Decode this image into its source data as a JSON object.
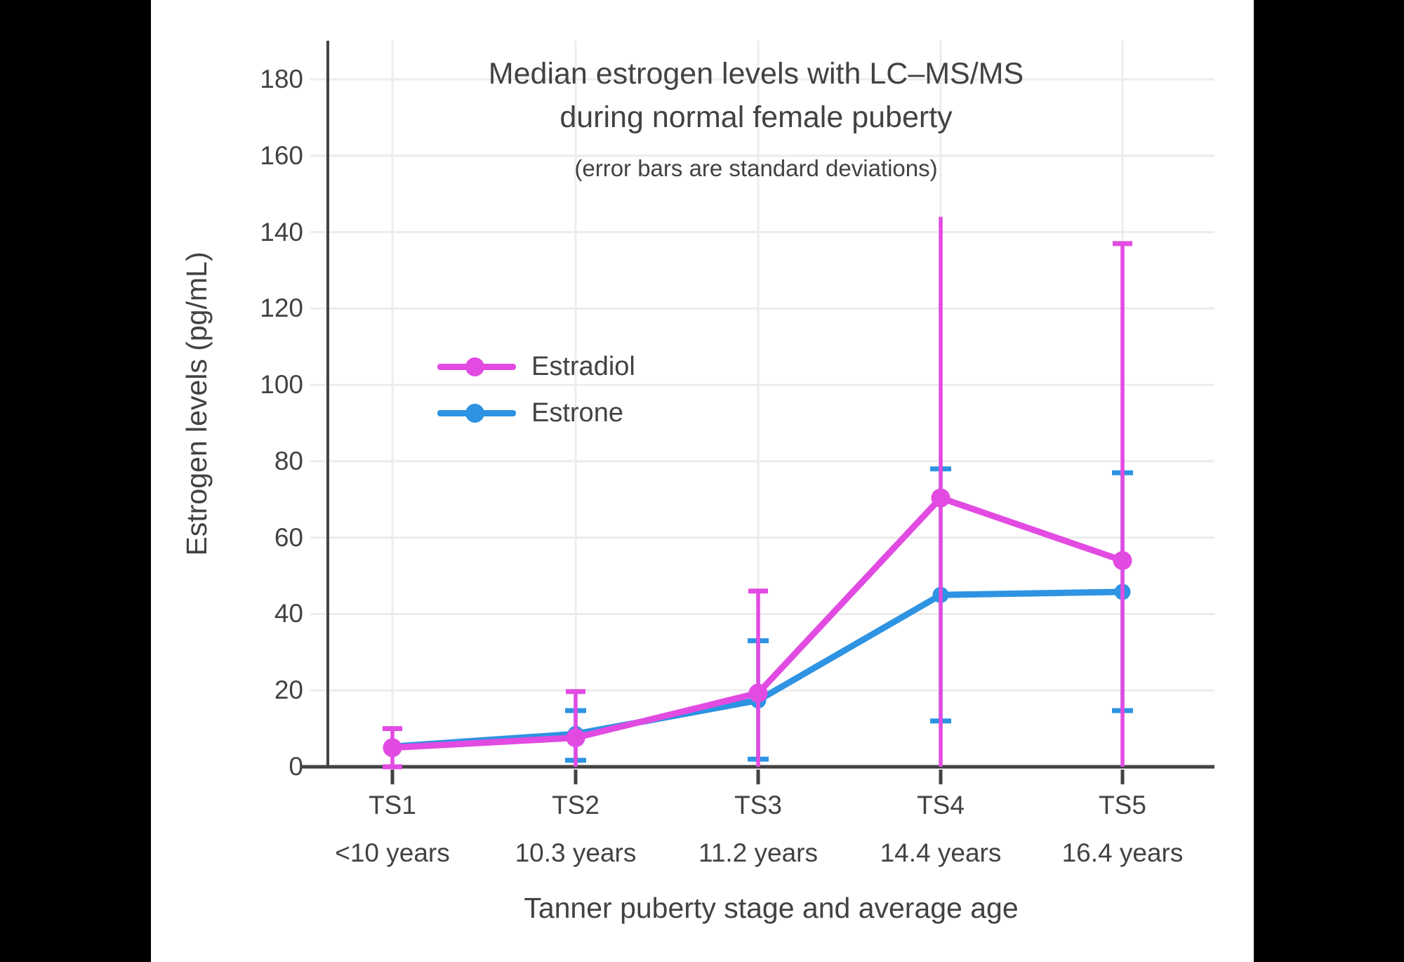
{
  "title": {
    "line1": "Median estrogen levels with LC–MS/MS",
    "line2": "during normal female puberty",
    "subtitle": "(error bars are standard deviations)"
  },
  "y_axis": {
    "title": "Estrogen levels (pg/mL)"
  },
  "x_axis": {
    "title": "Tanner puberty stage and average age"
  },
  "legend": [
    {
      "label": "Estradiol",
      "color": "#E24BE2"
    },
    {
      "label": "Estrone",
      "color": "#2D93E2"
    }
  ],
  "chart_data": {
    "type": "line",
    "title": "Median estrogen levels with LC–MS/MS during normal female puberty",
    "subtitle": "(error bars are standard deviations)",
    "xlabel": "Tanner puberty stage and average age",
    "ylabel": "Estrogen levels (pg/mL)",
    "categories": [
      "TS1",
      "TS2",
      "TS3",
      "TS4",
      "TS5"
    ],
    "category_ages": [
      "<10 years",
      "10.3 years",
      "11.2 years",
      "14.4 years",
      "16.4 years"
    ],
    "yticks": [
      0,
      20,
      40,
      60,
      80,
      100,
      120,
      140,
      160,
      180
    ],
    "ylim": [
      0,
      190
    ],
    "grid": true,
    "legend_position": "inside-upper-left",
    "error_bars": "standard deviations",
    "series": [
      {
        "name": "Estradiol",
        "color": "#E24BE2",
        "values": [
          5.0,
          7.6,
          19.3,
          70.4,
          54.0
        ],
        "err_top": [
          10,
          19.7,
          46,
          144,
          137
        ],
        "err_bot": [
          0,
          0,
          0,
          0,
          0
        ],
        "cap_top": [
          true,
          true,
          true,
          false,
          true
        ],
        "cap_bot": [
          true,
          false,
          false,
          false,
          false
        ]
      },
      {
        "name": "Estrone",
        "color": "#2D93E2",
        "values": [
          5.3,
          8.6,
          17.4,
          45.0,
          45.8
        ],
        "err_top": [
          null,
          14.7,
          33,
          78,
          77
        ],
        "err_bot": [
          null,
          1.7,
          2,
          12,
          14.7
        ],
        "cap_top": [
          false,
          true,
          true,
          true,
          true
        ],
        "cap_bot": [
          false,
          true,
          true,
          true,
          true
        ]
      }
    ]
  }
}
